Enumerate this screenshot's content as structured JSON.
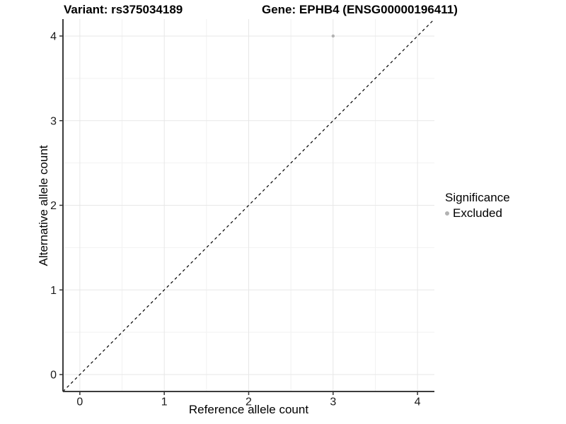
{
  "figure": {
    "title_left": "Variant: rs375034189",
    "title_right": "Gene: EPHB4 (ENSG00000196411)"
  },
  "chart_data": {
    "type": "scatter",
    "title": "Variant: rs375034189   Gene: EPHB4 (ENSG00000196411)",
    "xlabel": "Reference allele count",
    "ylabel": "Alternative allele count",
    "xlim": [
      -0.2,
      4.2
    ],
    "ylim": [
      -0.2,
      4.2
    ],
    "xticks": [
      0,
      1,
      2,
      3,
      4
    ],
    "yticks": [
      0,
      1,
      2,
      3,
      4
    ],
    "minor_tick_step": 0.5,
    "grid": "major-and-minor",
    "points": [
      {
        "x": 3,
        "y": 4,
        "series": "Excluded"
      }
    ],
    "reference_line": {
      "type": "identity",
      "from": [
        -0.2,
        -0.2
      ],
      "to": [
        4.2,
        4.2
      ],
      "style": "dashed"
    },
    "legend": {
      "title": "Significance",
      "position": "right",
      "items": [
        {
          "label": "Excluded",
          "color": "#b2b2b2"
        }
      ]
    },
    "colors": {
      "background": "#ffffff",
      "point": "#b2b2b2",
      "grid_major": "#e7e7e7",
      "grid_minor": "#f2f2f2",
      "axis_line": "#3c3c3c",
      "tick_mark": "#333333",
      "tick_text": "#1a1a1a",
      "reference_line": "#000000"
    }
  }
}
